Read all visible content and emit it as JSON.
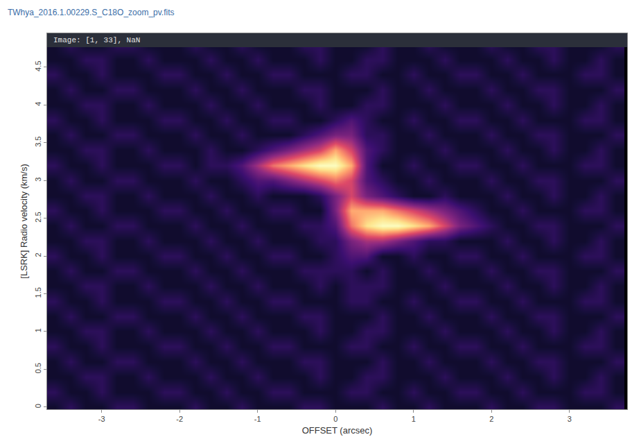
{
  "chart_data": {
    "type": "heatmap",
    "title": "TWhya_2016.1.00229.S_C18O_zoom_pv.fits",
    "annotation": "Image: [1, 33], NaN",
    "x_label": "OFFSET (arcsec)",
    "y_label": "[LSRK] Radio velocity (km/s)",
    "xlim": [
      -3.7,
      3.74
    ],
    "ylim": [
      -0.03,
      4.95
    ],
    "xticks": [
      -3,
      -2,
      -1,
      0,
      1,
      2,
      3
    ],
    "yticks": [
      0,
      0.5,
      1,
      1.5,
      2,
      2.5,
      3,
      3.5,
      4,
      4.5
    ],
    "zlim": [
      0,
      10
    ],
    "x": [
      -3.6,
      -3.4,
      -3.2,
      -3.0,
      -2.8,
      -2.6,
      -2.4,
      -2.2,
      -2.0,
      -1.8,
      -1.6,
      -1.4,
      -1.2,
      -1.0,
      -0.8,
      -0.6,
      -0.4,
      -0.2,
      0.0,
      0.2,
      0.4,
      0.6,
      0.8,
      1.0,
      1.2,
      1.4,
      1.6,
      1.8,
      2.0,
      2.2,
      2.4,
      2.6,
      2.8,
      3.0,
      3.2,
      3.4,
      3.6
    ],
    "y": [
      0.0,
      0.2,
      0.4,
      0.6,
      0.8,
      1.0,
      1.2,
      1.4,
      1.6,
      1.8,
      2.0,
      2.2,
      2.4,
      2.6,
      2.8,
      3.0,
      3.2,
      3.4,
      3.6,
      3.8,
      4.0,
      4.2,
      4.4,
      4.6,
      4.8
    ],
    "z": [
      [
        1,
        2,
        1,
        1,
        2,
        2,
        1,
        1,
        1,
        2,
        1,
        1,
        2,
        1,
        1,
        1,
        2,
        2,
        1,
        1,
        1,
        2,
        1,
        1,
        2,
        1,
        1,
        1,
        2,
        1,
        1,
        2,
        2,
        1,
        1,
        1,
        2
      ],
      [
        2,
        1,
        1,
        2,
        1,
        1,
        1,
        2,
        2,
        1,
        1,
        2,
        1,
        1,
        2,
        2,
        1,
        1,
        1,
        2,
        2,
        1,
        1,
        2,
        1,
        1,
        2,
        2,
        1,
        1,
        2,
        1,
        1,
        1,
        2,
        2,
        1
      ],
      [
        1,
        1,
        2,
        2,
        1,
        1,
        2,
        1,
        1,
        1,
        2,
        1,
        1,
        2,
        1,
        1,
        1,
        2,
        1,
        1,
        2,
        2,
        1,
        1,
        1,
        2,
        1,
        1,
        1,
        2,
        1,
        1,
        2,
        1,
        1,
        2,
        1
      ],
      [
        1,
        2,
        1,
        1,
        2,
        2,
        1,
        1,
        1,
        2,
        1,
        1,
        2,
        1,
        1,
        1,
        2,
        2,
        1,
        1,
        1,
        2,
        1,
        1,
        2,
        1,
        1,
        1,
        2,
        1,
        1,
        2,
        2,
        1,
        1,
        1,
        2
      ],
      [
        2,
        1,
        1,
        2,
        1,
        1,
        1,
        2,
        2,
        1,
        1,
        2,
        1,
        1,
        2,
        2,
        1,
        1,
        1,
        2,
        2,
        1,
        1,
        2,
        1,
        1,
        2,
        2,
        1,
        1,
        2,
        1,
        1,
        1,
        2,
        2,
        1
      ],
      [
        1,
        1,
        2,
        2,
        1,
        1,
        2,
        1,
        1,
        1,
        2,
        1,
        1,
        2,
        1,
        1,
        1,
        2,
        1,
        1,
        2,
        2,
        1,
        1,
        1,
        2,
        1,
        1,
        1,
        2,
        1,
        1,
        2,
        1,
        1,
        2,
        1
      ],
      [
        1,
        2,
        1,
        1,
        2,
        2,
        1,
        1,
        1,
        2,
        1,
        1,
        2,
        1,
        1,
        1,
        2,
        2,
        1,
        1,
        1,
        2,
        1,
        1,
        2,
        1,
        1,
        1,
        2,
        1,
        1,
        2,
        2,
        1,
        1,
        1,
        2
      ],
      [
        2,
        1,
        1,
        2,
        1,
        1,
        1,
        2,
        2,
        1,
        1,
        2,
        1,
        1,
        2,
        2,
        1,
        1,
        1,
        2,
        2,
        1,
        1,
        2,
        1,
        1,
        2,
        2,
        1,
        1,
        2,
        1,
        1,
        1,
        2,
        2,
        1
      ],
      [
        1,
        1,
        2,
        2,
        1,
        1,
        2,
        1,
        1,
        1,
        2,
        1,
        1,
        2,
        1,
        1,
        1,
        2,
        1,
        2,
        2,
        2,
        1,
        1,
        1,
        2,
        1,
        1,
        1,
        2,
        1,
        1,
        2,
        1,
        1,
        2,
        1
      ],
      [
        1,
        2,
        1,
        1,
        2,
        2,
        1,
        1,
        1,
        2,
        1,
        1,
        2,
        1,
        1,
        1,
        2,
        2,
        2,
        2,
        1,
        2,
        1,
        1,
        2,
        1,
        1,
        1,
        2,
        1,
        1,
        2,
        2,
        1,
        1,
        1,
        2
      ],
      [
        2,
        1,
        1,
        2,
        1,
        1,
        1,
        2,
        2,
        1,
        1,
        2,
        1,
        1,
        2,
        2,
        1,
        1,
        2,
        3,
        3,
        1,
        1,
        2,
        1,
        1,
        2,
        2,
        1,
        1,
        2,
        1,
        1,
        1,
        2,
        2,
        1
      ],
      [
        1,
        1,
        2,
        2,
        1,
        1,
        2,
        1,
        1,
        1,
        2,
        1,
        1,
        2,
        1,
        1,
        1,
        2,
        2,
        4,
        5,
        5,
        4,
        3,
        2,
        2,
        1,
        1,
        1,
        2,
        1,
        1,
        2,
        1,
        1,
        2,
        1
      ],
      [
        1,
        2,
        1,
        1,
        2,
        2,
        1,
        1,
        1,
        2,
        1,
        1,
        2,
        1,
        1,
        1,
        2,
        2,
        3,
        7,
        9,
        10,
        10,
        9,
        8,
        6,
        4,
        3,
        2,
        1,
        1,
        2,
        2,
        1,
        1,
        1,
        2
      ],
      [
        2,
        1,
        1,
        2,
        1,
        1,
        1,
        2,
        2,
        1,
        1,
        2,
        1,
        1,
        2,
        2,
        1,
        1,
        4,
        8,
        8,
        8,
        7,
        6,
        5,
        4,
        3,
        2,
        1,
        1,
        2,
        1,
        1,
        1,
        2,
        2,
        1
      ],
      [
        1,
        1,
        2,
        2,
        1,
        1,
        2,
        1,
        1,
        1,
        2,
        1,
        1,
        2,
        1,
        1,
        1,
        2,
        4,
        6,
        4,
        3,
        2,
        1,
        1,
        2,
        1,
        1,
        1,
        2,
        1,
        1,
        2,
        1,
        1,
        2,
        1
      ],
      [
        1,
        2,
        1,
        1,
        2,
        2,
        1,
        1,
        1,
        2,
        1,
        1,
        2,
        3,
        3,
        4,
        5,
        6,
        7,
        6,
        3,
        2,
        1,
        1,
        2,
        1,
        1,
        1,
        2,
        1,
        1,
        2,
        2,
        1,
        1,
        1,
        2
      ],
      [
        2,
        1,
        1,
        2,
        1,
        1,
        1,
        2,
        2,
        1,
        2,
        2,
        3,
        5,
        7,
        8,
        9,
        10,
        10,
        8,
        3,
        1,
        1,
        2,
        1,
        1,
        2,
        2,
        1,
        1,
        2,
        1,
        1,
        1,
        2,
        2,
        1
      ],
      [
        1,
        1,
        2,
        2,
        1,
        1,
        2,
        1,
        1,
        1,
        2,
        1,
        1,
        2,
        3,
        4,
        5,
        6,
        8,
        6,
        3,
        2,
        1,
        1,
        1,
        2,
        1,
        1,
        1,
        2,
        1,
        1,
        2,
        1,
        1,
        2,
        1
      ],
      [
        1,
        2,
        1,
        1,
        2,
        2,
        1,
        1,
        1,
        2,
        1,
        1,
        2,
        1,
        1,
        1,
        2,
        3,
        4,
        4,
        2,
        2,
        1,
        1,
        2,
        1,
        1,
        1,
        2,
        1,
        1,
        2,
        2,
        1,
        1,
        1,
        2
      ],
      [
        2,
        1,
        1,
        2,
        1,
        1,
        1,
        2,
        2,
        1,
        1,
        2,
        1,
        1,
        2,
        2,
        1,
        1,
        2,
        3,
        2,
        1,
        1,
        2,
        1,
        1,
        2,
        2,
        1,
        1,
        2,
        1,
        1,
        1,
        2,
        2,
        1
      ],
      [
        1,
        1,
        2,
        2,
        1,
        1,
        2,
        1,
        1,
        1,
        2,
        1,
        1,
        2,
        1,
        1,
        1,
        2,
        1,
        1,
        2,
        2,
        1,
        1,
        1,
        2,
        1,
        1,
        1,
        2,
        1,
        1,
        2,
        1,
        1,
        2,
        1
      ],
      [
        1,
        2,
        1,
        1,
        2,
        2,
        1,
        1,
        1,
        2,
        1,
        1,
        2,
        1,
        1,
        1,
        2,
        2,
        1,
        1,
        1,
        2,
        1,
        1,
        2,
        1,
        1,
        1,
        2,
        1,
        1,
        2,
        2,
        1,
        1,
        1,
        2
      ],
      [
        2,
        1,
        1,
        2,
        1,
        1,
        1,
        2,
        2,
        1,
        1,
        2,
        1,
        1,
        2,
        2,
        1,
        1,
        1,
        2,
        2,
        1,
        1,
        2,
        1,
        1,
        2,
        2,
        1,
        1,
        2,
        1,
        1,
        1,
        2,
        2,
        1
      ],
      [
        1,
        1,
        2,
        2,
        1,
        1,
        2,
        1,
        1,
        1,
        2,
        1,
        1,
        2,
        1,
        1,
        1,
        2,
        1,
        1,
        2,
        2,
        1,
        1,
        1,
        2,
        1,
        1,
        1,
        2,
        1,
        1,
        2,
        1,
        1,
        2,
        1
      ],
      [
        1,
        2,
        1,
        1,
        2,
        2,
        1,
        1,
        1,
        2,
        1,
        1,
        2,
        1,
        1,
        1,
        2,
        2,
        1,
        1,
        1,
        2,
        1,
        1,
        2,
        1,
        1,
        1,
        2,
        1,
        1,
        2,
        2,
        1,
        1,
        1,
        2
      ]
    ]
  }
}
